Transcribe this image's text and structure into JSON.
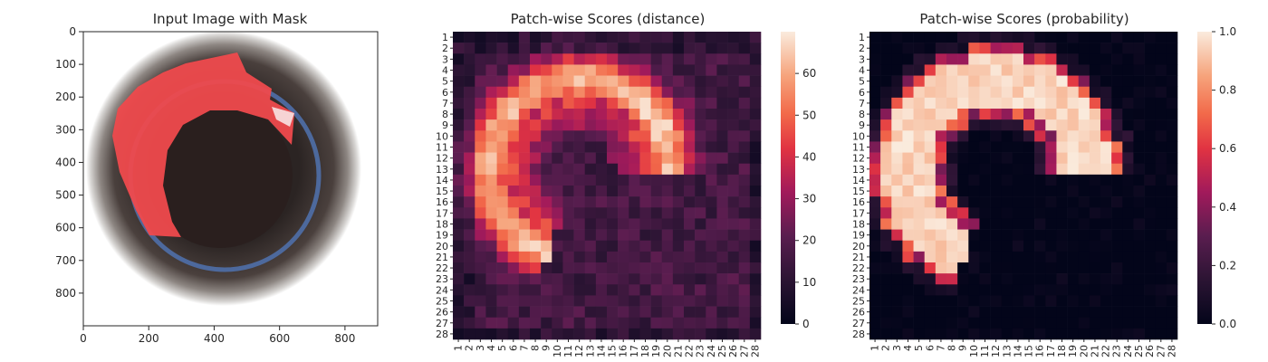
{
  "chart_data": [
    {
      "type": "image",
      "title": "Input Image with Mask",
      "xticks": [
        0,
        200,
        400,
        600,
        800
      ],
      "yticks": [
        0,
        100,
        200,
        300,
        400,
        500,
        600,
        700,
        800
      ],
      "xlim": [
        0,
        900
      ],
      "ylim": [
        900,
        0
      ],
      "image": {
        "center": [
          430,
          420
        ],
        "outer_radius": 445,
        "inner_hole_radius": 200,
        "inner_hole_center": [
          420,
          440
        ],
        "mask_color": "#ef4a4d",
        "mask_region": "crescent along the upper-left rim from about (170,620) to (640,260)"
      }
    },
    {
      "type": "heatmap",
      "title": "Patch-wise Scores (distance)",
      "colormap": "rocket",
      "rows": 28,
      "cols": 28,
      "xticklabels": [
        "1",
        "2",
        "3",
        "4",
        "5",
        "6",
        "7",
        "8",
        "9",
        "10",
        "11",
        "12",
        "13",
        "14",
        "15",
        "16",
        "17",
        "18",
        "19",
        "20",
        "21",
        "22",
        "23",
        "24",
        "25",
        "26",
        "27",
        "28"
      ],
      "yticklabels": [
        "1",
        "2",
        "3",
        "4",
        "5",
        "6",
        "7",
        "8",
        "9",
        "10",
        "11",
        "12",
        "13",
        "14",
        "15",
        "16",
        "17",
        "18",
        "19",
        "20",
        "21",
        "22",
        "23",
        "24",
        "25",
        "26",
        "27",
        "28"
      ],
      "colorbar": {
        "min": 0,
        "max": 70,
        "ticks": [
          0,
          10,
          20,
          30,
          40,
          50,
          60
        ]
      },
      "pattern": {
        "value_range": [
          2,
          69
        ],
        "arc_center": [
          12,
          11
        ],
        "arc_radius": 8.2,
        "peak_at": [
          7,
          19
        ]
      }
    },
    {
      "type": "heatmap",
      "title": "Patch-wise Scores (probability)",
      "colormap": "rocket",
      "rows": 28,
      "cols": 28,
      "xticklabels": [
        "1",
        "2",
        "3",
        "4",
        "5",
        "6",
        "7",
        "8",
        "9",
        "10",
        "11",
        "12",
        "13",
        "14",
        "15",
        "16",
        "17",
        "18",
        "19",
        "20",
        "21",
        "22",
        "23",
        "24",
        "25",
        "26",
        "27",
        "28"
      ],
      "yticklabels": [
        "1",
        "2",
        "3",
        "4",
        "5",
        "6",
        "7",
        "8",
        "9",
        "10",
        "11",
        "12",
        "13",
        "14",
        "15",
        "16",
        "17",
        "18",
        "19",
        "20",
        "21",
        "22",
        "23",
        "24",
        "25",
        "26",
        "27",
        "28"
      ],
      "colorbar": {
        "min": 0.0,
        "max": 1.0,
        "ticks": [
          "0.0",
          "0.2",
          "0.4",
          "0.6",
          "0.8",
          "1.0"
        ]
      },
      "pattern": {
        "value_range": [
          0.0,
          1.0
        ],
        "arc_center": [
          12,
          11
        ],
        "arc_radius": 8.2,
        "high_band_width": 2.2
      }
    }
  ]
}
